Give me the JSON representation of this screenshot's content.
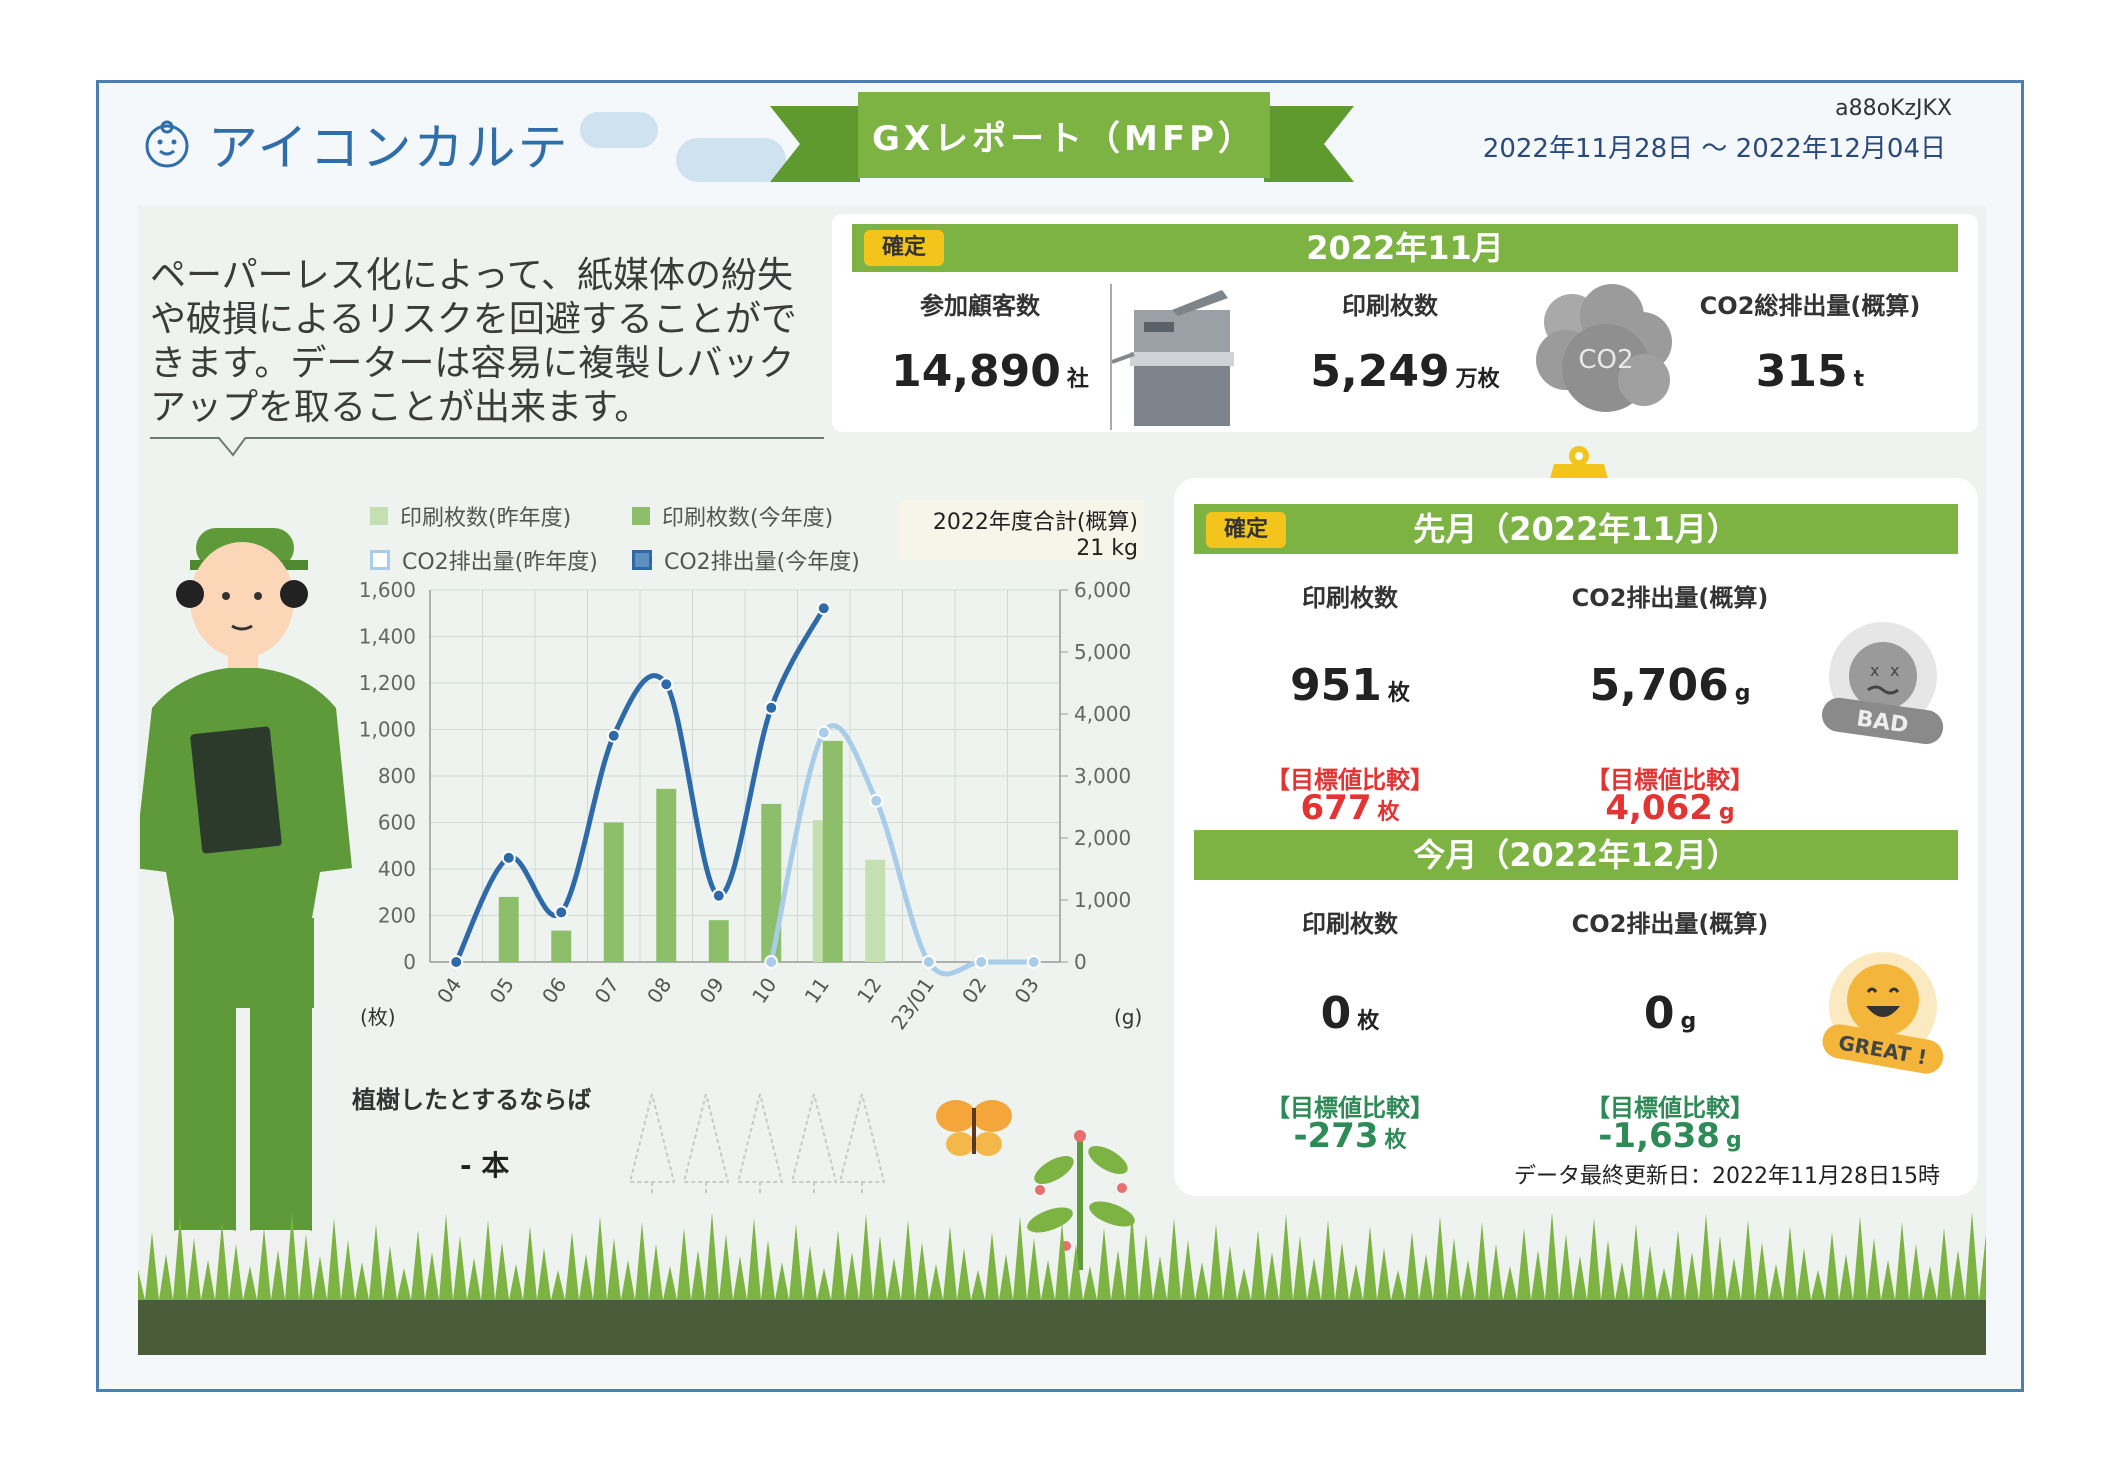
{
  "header": {
    "logo_text": "アイコンカルテ",
    "report_title": "GXレポート（MFP）",
    "code": "a88oKzJKX",
    "date_range": "2022年11月28日 〜 2022年12月04日"
  },
  "intro_text": "ペーパーレス化によって、紙媒体の紛失や破損によるリスクを回避することができます。データーは容易に複製しバックアップを取ることが出来ます。",
  "summary": {
    "status_chip": "確定",
    "month": "2022年11月",
    "customers_label": "参加顧客数",
    "customers_value": "14,890",
    "customers_unit": "社",
    "prints_label": "印刷枚数",
    "prints_value": "5,249",
    "prints_unit": "万枚",
    "co2_label": "CO2総排出量(概算)",
    "co2_value": "315",
    "co2_unit": "t",
    "co2_icon_text": "CO2"
  },
  "last_month": {
    "status_chip": "確定",
    "title": "先月（2022年11月）",
    "prints_label": "印刷枚数",
    "prints_value": "951",
    "prints_unit": "枚",
    "co2_label": "CO2排出量(概算)",
    "co2_value": "5,706",
    "co2_unit": "g",
    "cmp_label": "【目標値比較】",
    "prints_cmp": "677",
    "prints_cmp_unit": "枚",
    "co2_cmp": "4,062",
    "co2_cmp_unit": "g",
    "badge": "BAD"
  },
  "this_month": {
    "title": "今月（2022年12月）",
    "prints_label": "印刷枚数",
    "prints_value": "0",
    "prints_unit": "枚",
    "co2_label": "CO2排出量(概算)",
    "co2_value": "0",
    "co2_unit": "g",
    "cmp_label": "【目標値比較】",
    "prints_cmp": "-273",
    "prints_cmp_unit": "枚",
    "co2_cmp": "-1,638",
    "co2_cmp_unit": "g",
    "badge": "GREAT !"
  },
  "last_updated": "データ最終更新日：2022年11月28日15時",
  "trees": {
    "label": "植樹したとするならば",
    "value": "- 本"
  },
  "chart_data": {
    "type": "bar",
    "total_label": "2022年度合計(概算)",
    "total_value": "21 kg",
    "categories": [
      "04",
      "05",
      "06",
      "07",
      "08",
      "09",
      "10",
      "11",
      "12",
      "23/01",
      "02",
      "03"
    ],
    "y_left_ticks": [
      "1,600",
      "1,400",
      "1,200",
      "1,000",
      "800",
      "600",
      "400",
      "200",
      "0"
    ],
    "y_right_ticks": [
      "6,000",
      "5,000",
      "4,000",
      "3,000",
      "2,000",
      "1,000",
      "0"
    ],
    "y_left_unit": "(枚)",
    "y_right_unit": "(g)",
    "ylim_left": [
      0,
      1600
    ],
    "ylim_right": [
      0,
      6000
    ],
    "series": [
      {
        "name": "印刷枚数(昨年度)",
        "kind": "bar",
        "axis": "left",
        "color": "#c5e0b0",
        "values": [
          0,
          0,
          0,
          0,
          0,
          0,
          0,
          610,
          440,
          0,
          0,
          0
        ]
      },
      {
        "name": "印刷枚数(今年度)",
        "kind": "bar",
        "axis": "left",
        "color": "#8dbf6a",
        "values": [
          0,
          280,
          135,
          600,
          745,
          180,
          680,
          951,
          null,
          null,
          null,
          null
        ]
      },
      {
        "name": "CO2排出量(昨年度)",
        "kind": "line",
        "axis": "right",
        "color": "#a9cde8",
        "values": [
          null,
          null,
          null,
          null,
          null,
          null,
          0,
          3700,
          2600,
          0,
          0,
          0
        ]
      },
      {
        "name": "CO2排出量(今年度)",
        "kind": "line",
        "axis": "right",
        "color": "#2f6aa8",
        "values": [
          0,
          1680,
          800,
          3650,
          4480,
          1070,
          4100,
          5706,
          null,
          null,
          null,
          null
        ]
      }
    ]
  }
}
